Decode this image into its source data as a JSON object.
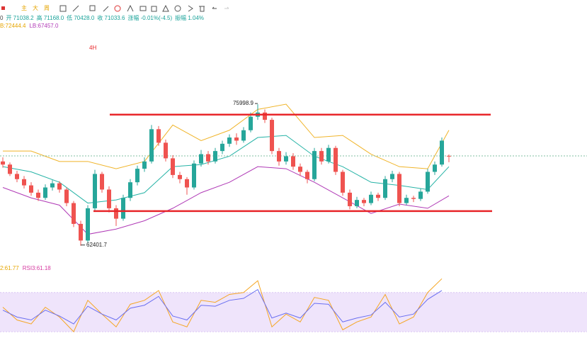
{
  "chart_data": {
    "type": "candlestick",
    "toolbar_labels": [
      "主",
      "大",
      "周"
    ],
    "info_fields": [
      {
        "text": "0",
        "color": "#444444"
      },
      {
        "text": "开 71038.2",
        "color": "#1aa39a"
      },
      {
        "text": "高 71168.0",
        "color": "#1aa39a"
      },
      {
        "text": "低 70428.0",
        "color": "#1aa39a"
      },
      {
        "text": "收 71033.6",
        "color": "#1aa39a"
      },
      {
        "text": "涨幅 -0.01%(-4.5)",
        "color": "#1aa39a"
      },
      {
        "text": "振幅 1.04%",
        "color": "#1aa39a"
      }
    ],
    "band_labels": [
      {
        "text": "B:72444.4",
        "color": "#e6a500"
      },
      {
        "text": "LB:67457.0",
        "color": "#b03ab6"
      }
    ],
    "interval_label": "4H",
    "annotations": [
      {
        "text": "75998.9",
        "candle": 36,
        "value": 75998.9
      },
      {
        "text": "62401.7",
        "candle": 11,
        "value": 62401.7
      }
    ],
    "ylim": [
      60000,
      79000
    ],
    "up_color": "#26a69a",
    "down_color": "#ef5350",
    "last_price": 71033.6,
    "levels": [
      75000,
      65730
    ],
    "level_color": "#e8262a",
    "ohlc": [
      [
        70500,
        70900,
        69900,
        70200
      ],
      [
        70200,
        70400,
        69100,
        69300
      ],
      [
        69300,
        69600,
        68500,
        68800
      ],
      [
        68800,
        69100,
        67900,
        68200
      ],
      [
        68200,
        68500,
        67200,
        67500
      ],
      [
        67500,
        67800,
        66700,
        67000
      ],
      [
        67000,
        68300,
        66800,
        68000
      ],
      [
        68000,
        68700,
        67700,
        68400
      ],
      [
        68400,
        68600,
        67500,
        67800
      ],
      [
        67800,
        68000,
        66200,
        66500
      ],
      [
        66500,
        66700,
        64200,
        64500
      ],
      [
        64500,
        64800,
        62401.7,
        62900
      ],
      [
        62900,
        66300,
        62700,
        66000
      ],
      [
        66000,
        69700,
        65800,
        69300
      ],
      [
        69300,
        69500,
        67500,
        67800
      ],
      [
        67800,
        68100,
        65600,
        66000
      ],
      [
        66000,
        66300,
        64300,
        65000
      ],
      [
        65000,
        67300,
        64800,
        67000
      ],
      [
        67000,
        68800,
        66700,
        68500
      ],
      [
        68500,
        70100,
        68200,
        69800
      ],
      [
        69800,
        70900,
        69500,
        70500
      ],
      [
        70500,
        74000,
        70300,
        73600
      ],
      [
        73600,
        73900,
        72000,
        72300
      ],
      [
        72300,
        72600,
        70500,
        70800
      ],
      [
        70800,
        71100,
        68900,
        69200
      ],
      [
        69200,
        69500,
        68400,
        68800
      ],
      [
        68800,
        69000,
        67300,
        68000
      ],
      [
        68000,
        70600,
        67800,
        70300
      ],
      [
        70300,
        71600,
        70000,
        71200
      ],
      [
        71200,
        71500,
        70200,
        70500
      ],
      [
        70500,
        71800,
        70300,
        71500
      ],
      [
        71500,
        72500,
        71200,
        72200
      ],
      [
        72200,
        73100,
        71900,
        72800
      ],
      [
        72800,
        73200,
        72100,
        72500
      ],
      [
        72500,
        73800,
        72300,
        73500
      ],
      [
        73500,
        75200,
        73300,
        74800
      ],
      [
        74800,
        75998.9,
        74500,
        75200
      ],
      [
        75200,
        75500,
        74200,
        74500
      ],
      [
        74500,
        74700,
        71200,
        71500
      ],
      [
        71500,
        71800,
        70100,
        70500
      ],
      [
        70500,
        71400,
        70200,
        71000
      ],
      [
        71000,
        71300,
        69700,
        70000
      ],
      [
        70000,
        70300,
        69100,
        69500
      ],
      [
        69500,
        69700,
        68400,
        68800
      ],
      [
        68800,
        71800,
        68600,
        71500
      ],
      [
        71500,
        71800,
        70200,
        70500
      ],
      [
        70500,
        72100,
        70300,
        71800
      ],
      [
        71800,
        72000,
        69200,
        69500
      ],
      [
        69500,
        69700,
        67200,
        67500
      ],
      [
        67500,
        67800,
        65900,
        66200
      ],
      [
        66200,
        67100,
        66000,
        66800
      ],
      [
        66800,
        67000,
        66200,
        66500
      ],
      [
        66500,
        67600,
        66300,
        67300
      ],
      [
        67300,
        67500,
        66700,
        67000
      ],
      [
        67000,
        69100,
        66800,
        68800
      ],
      [
        68800,
        69600,
        68500,
        69300
      ],
      [
        69300,
        69500,
        66200,
        66500
      ],
      [
        66500,
        67300,
        66300,
        67000
      ],
      [
        67000,
        67200,
        66600,
        66900
      ],
      [
        66900,
        67900,
        66700,
        67600
      ],
      [
        67600,
        69800,
        67400,
        69500
      ],
      [
        69500,
        70500,
        69200,
        70200
      ],
      [
        70200,
        72800,
        70000,
        72500
      ],
      [
        71038.2,
        71168,
        70428,
        71033.6
      ]
    ],
    "bands": {
      "x": [
        0,
        4,
        8,
        12,
        16,
        20,
        24,
        28,
        32,
        36,
        40,
        44,
        48,
        52,
        56,
        60,
        63
      ],
      "series": [
        {
          "color": "#f0b429",
          "values": [
            71500,
            71500,
            70500,
            70500,
            69800,
            70500,
            74000,
            72500,
            73500,
            75500,
            76000,
            72800,
            73000,
            71200,
            70000,
            69800,
            73500
          ]
        },
        {
          "color": "#26b3a6",
          "values": [
            70000,
            69500,
            68500,
            66500,
            66800,
            67500,
            70000,
            70200,
            71000,
            72800,
            73000,
            71000,
            70000,
            68500,
            68200,
            67800,
            70000
          ]
        },
        {
          "color": "#b03ab6",
          "values": [
            68000,
            67000,
            66300,
            63500,
            64000,
            64800,
            66000,
            67500,
            68500,
            70000,
            69800,
            68500,
            67000,
            65500,
            66400,
            66000,
            67200
          ]
        }
      ]
    },
    "rsi": {
      "labels": [
        {
          "text": "2:61.77",
          "color": "#e6a500"
        },
        {
          "text": "RSI3:61.18",
          "color": "#d63aa0"
        }
      ],
      "ylim": [
        20,
        90
      ],
      "band": [
        30,
        70
      ],
      "band_color": "#efe4fb",
      "x": [
        0,
        2,
        4,
        6,
        8,
        10,
        12,
        14,
        16,
        18,
        20,
        22,
        24,
        26,
        28,
        30,
        32,
        34,
        36,
        38,
        40,
        42,
        44,
        46,
        48,
        50,
        52,
        54,
        56,
        58,
        60,
        62
      ],
      "series": [
        {
          "color": "#f5a623",
          "values": [
            55,
            42,
            38,
            55,
            45,
            30,
            62,
            48,
            35,
            58,
            62,
            72,
            40,
            35,
            62,
            60,
            68,
            70,
            82,
            35,
            48,
            40,
            65,
            62,
            32,
            40,
            45,
            68,
            38,
            45,
            70,
            84
          ]
        },
        {
          "color": "#6a6ff0",
          "values": [
            52,
            45,
            42,
            52,
            46,
            38,
            56,
            48,
            42,
            54,
            57,
            66,
            46,
            42,
            57,
            56,
            62,
            64,
            73,
            44,
            49,
            44,
            59,
            58,
            40,
            44,
            47,
            60,
            45,
            48,
            63,
            72
          ]
        }
      ]
    }
  }
}
